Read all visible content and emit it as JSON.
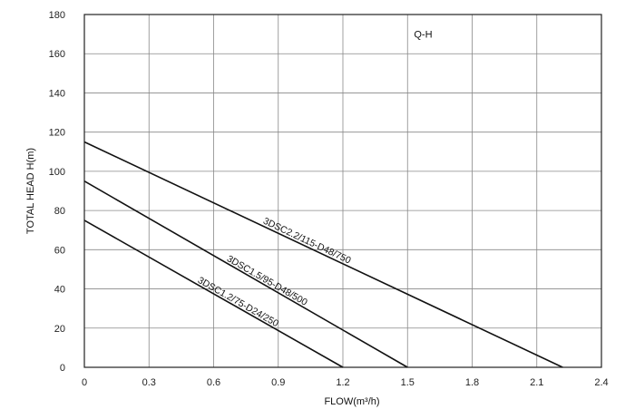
{
  "chart_data": {
    "type": "line",
    "title": "",
    "annotation": "Q-H",
    "xlabel": "FLOW(m³/h)",
    "ylabel": "TOTAL HEAD H(m)",
    "xlim": [
      0,
      2.4
    ],
    "ylim": [
      0,
      180
    ],
    "x_ticks": [
      "0",
      "0.3",
      "0.6",
      "0.9",
      "1.2",
      "1.5",
      "1.8",
      "2.1",
      "2.4"
    ],
    "y_ticks": [
      "0",
      "20",
      "40",
      "60",
      "80",
      "100",
      "120",
      "140",
      "160",
      "180"
    ],
    "grid": true,
    "legend": "none",
    "series": [
      {
        "name": "3DSC2.2/115-D48/750",
        "x": [
          0,
          2.22
        ],
        "y": [
          115,
          0
        ]
      },
      {
        "name": "3DSC1.5/95-D48/500",
        "x": [
          0,
          1.5
        ],
        "y": [
          95,
          0
        ]
      },
      {
        "name": "3DSC1.2/75-D24/250",
        "x": [
          0,
          1.2
        ],
        "y": [
          75,
          0
        ]
      }
    ],
    "colors": {
      "line": "#111111",
      "grid": "#888888",
      "frame": "#222222"
    }
  }
}
